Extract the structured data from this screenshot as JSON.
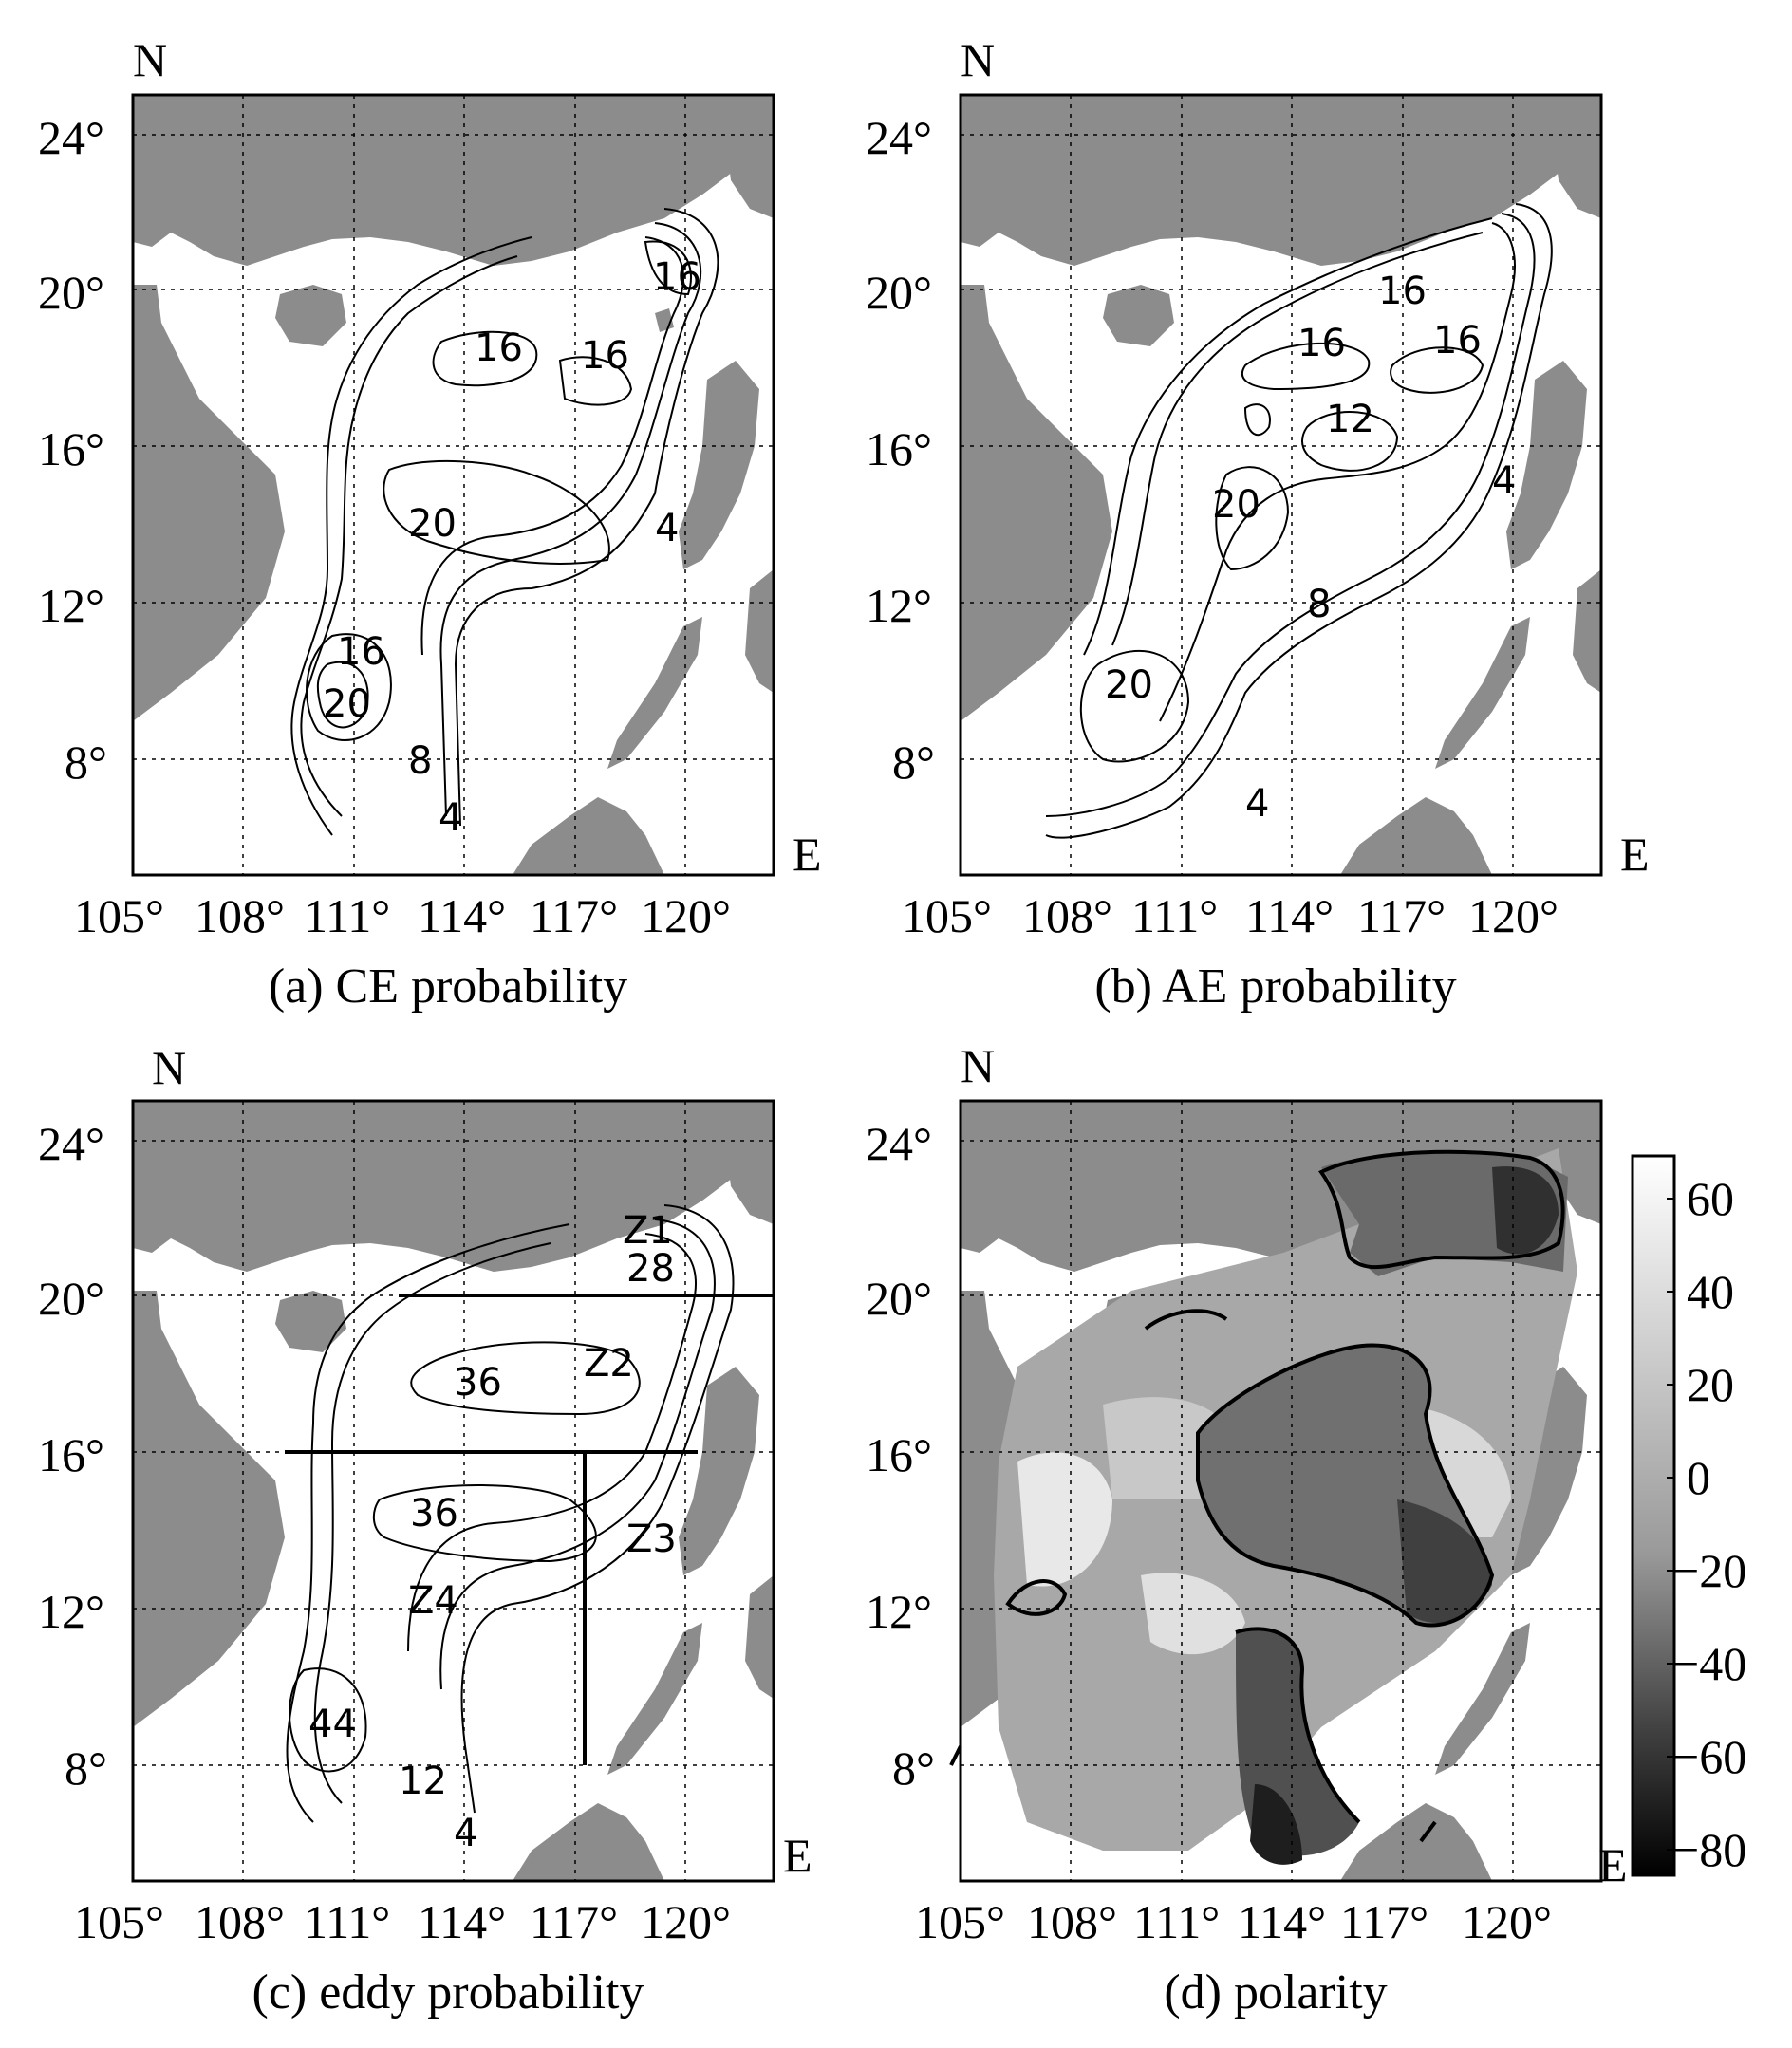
{
  "colors": {
    "land": "#8c8c8c",
    "sea": "#ffffff",
    "contour": "#000000",
    "grid": "#000000"
  },
  "axes": {
    "lon_ticks": [
      "105°",
      "108°",
      "111°",
      "114°",
      "117°",
      "120°"
    ],
    "lat_ticks": [
      "24°",
      "20°",
      "16°",
      "12°",
      "8°"
    ],
    "north_label": "N",
    "east_label": "E"
  },
  "panels": {
    "a": {
      "caption": "(a) CE probability",
      "contour_labels": [
        "16",
        "16",
        "16",
        "20",
        "4",
        "16",
        "20",
        "8",
        "4"
      ]
    },
    "b": {
      "caption": "(b) AE probability",
      "contour_labels": [
        "16",
        "16",
        "16",
        "12",
        "20",
        "4",
        "8",
        "20",
        "4"
      ]
    },
    "c": {
      "caption": "(c) eddy probability",
      "contour_labels": [
        "28",
        "36",
        "36",
        "44",
        "12",
        "4"
      ],
      "zones": [
        "Z1",
        "Z2",
        "Z3",
        "Z4"
      ]
    },
    "d": {
      "caption": "(d) polarity",
      "colorbar": {
        "ticks": [
          "60",
          "40",
          "20",
          "0",
          "−20",
          "−40",
          "−60",
          "−80"
        ],
        "range": [
          -85,
          70
        ]
      }
    }
  }
}
